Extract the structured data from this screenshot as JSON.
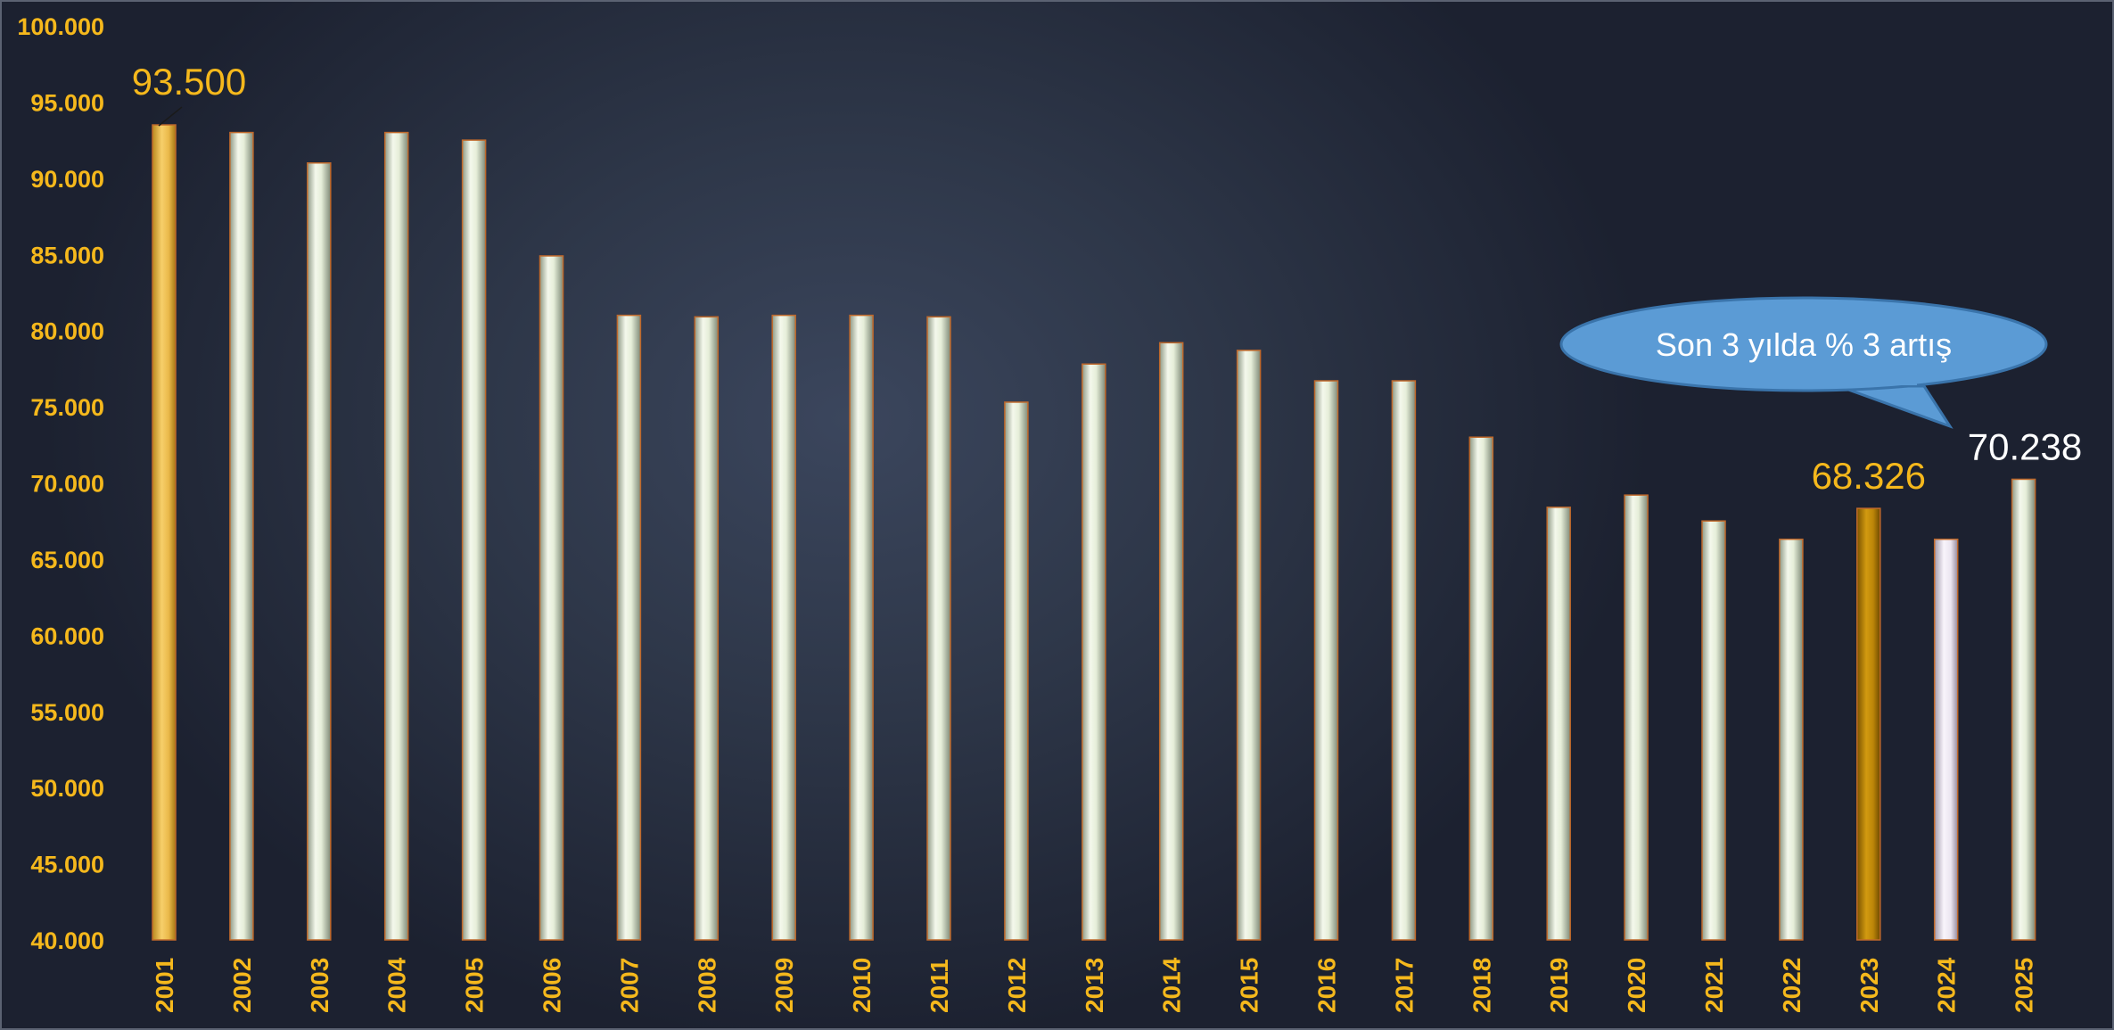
{
  "chart_data": {
    "type": "bar",
    "title": "",
    "xlabel": "",
    "ylabel": "",
    "ylim": [
      40000,
      100000
    ],
    "yticks": [
      40000,
      45000,
      50000,
      55000,
      60000,
      65000,
      70000,
      75000,
      80000,
      85000,
      90000,
      95000,
      100000
    ],
    "ytick_labels": [
      "40.000",
      "45.000",
      "50.000",
      "55.000",
      "60.000",
      "65.000",
      "70.000",
      "75.000",
      "80.000",
      "85.000",
      "90.000",
      "95.000",
      "100.000"
    ],
    "categories": [
      "2001",
      "2002",
      "2003",
      "2004",
      "2005",
      "2006",
      "2007",
      "2008",
      "2009",
      "2010",
      "2011",
      "2012",
      "2013",
      "2014",
      "2015",
      "2016",
      "2017",
      "2018",
      "2019",
      "2020",
      "2021",
      "2022",
      "2023",
      "2024",
      "2025"
    ],
    "values": [
      93500,
      93000,
      91000,
      93000,
      92500,
      84900,
      81000,
      80900,
      81000,
      81000,
      80900,
      75300,
      77800,
      79200,
      78700,
      76700,
      76700,
      73000,
      68400,
      69200,
      67500,
      66300,
      68326,
      66300,
      70238
    ],
    "highlight": {
      "2001": "gold-light",
      "2023": "gold-dark",
      "2024": "lavender"
    },
    "data_labels": [
      {
        "category": "2001",
        "text": "93.500",
        "color": "#f5b81c"
      },
      {
        "category": "2023",
        "text": "68.326",
        "color": "#f5b81c"
      },
      {
        "category": "2025",
        "text": "70.238",
        "color": "#ffffff"
      }
    ],
    "annotation": {
      "text": "Son 3 yılda % 3 artış",
      "color": "#5b9bd5",
      "points_to": "2025"
    },
    "colors": {
      "background": "#2e3749",
      "tick_text": "#f5b81c",
      "bar": "#e8f0dc",
      "bar_border": "#c0692b",
      "gold_light": "#f2c14e",
      "gold_dark": "#c08a0a",
      "lavender": "#ece6f2"
    },
    "grid": false,
    "legend": "none"
  }
}
